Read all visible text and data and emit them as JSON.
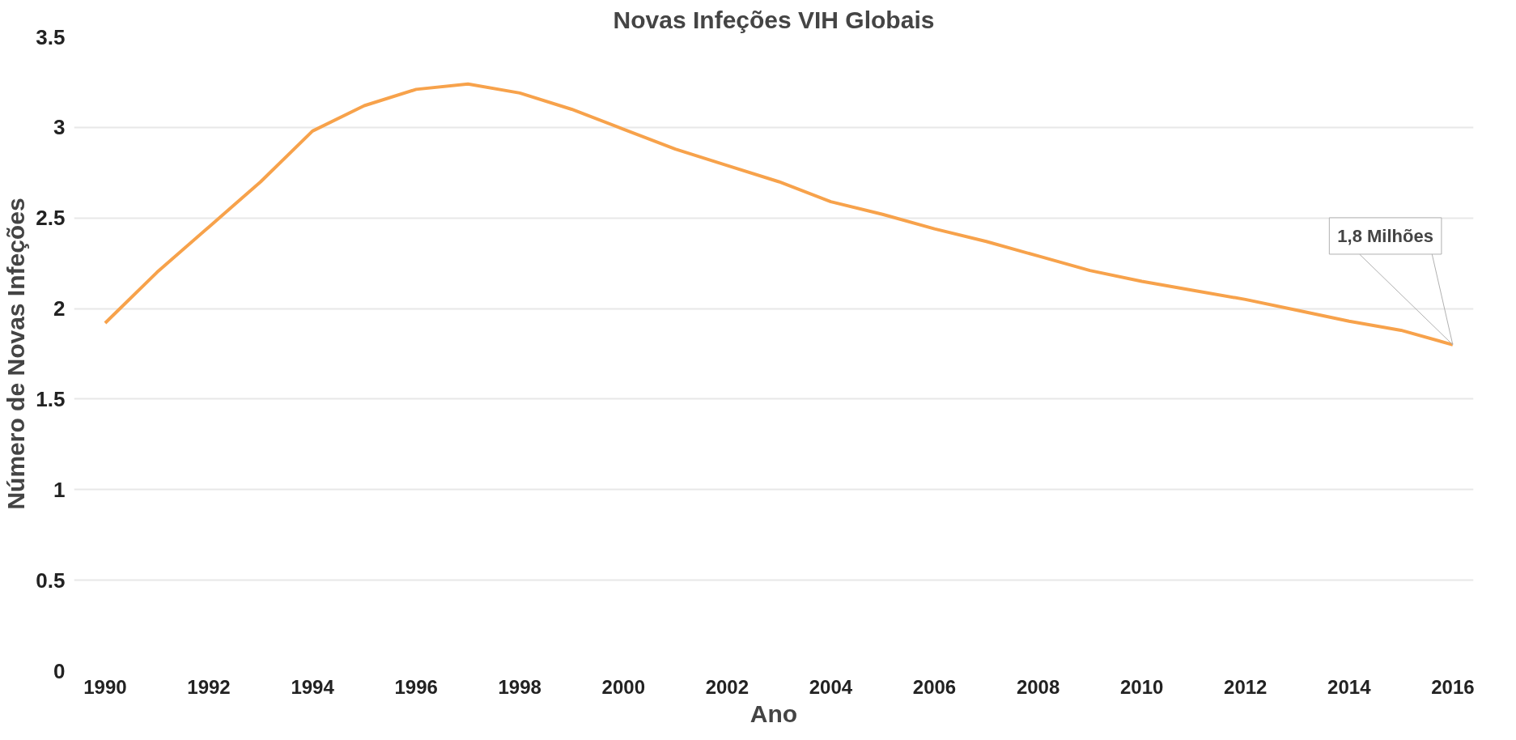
{
  "chart_data": {
    "type": "line",
    "title": "Novas Infeções VIH Globais",
    "xlabel": "Ano",
    "ylabel": "Número de Novas Infeções",
    "x": [
      1990,
      1991,
      1992,
      1993,
      1994,
      1995,
      1996,
      1997,
      1998,
      1999,
      2000,
      2001,
      2002,
      2003,
      2004,
      2005,
      2006,
      2007,
      2008,
      2009,
      2010,
      2011,
      2012,
      2013,
      2014,
      2015,
      2016
    ],
    "series": [
      {
        "color": "#f7a24b",
        "values": [
          1.92,
          2.2,
          2.45,
          2.7,
          2.98,
          3.12,
          3.21,
          3.24,
          3.19,
          3.1,
          2.99,
          2.88,
          2.79,
          2.7,
          2.59,
          2.52,
          2.44,
          2.37,
          2.29,
          2.21,
          2.15,
          2.1,
          2.05,
          1.99,
          1.93,
          1.88,
          1.8
        ]
      }
    ],
    "xlim": [
      1989.4,
      2016.4
    ],
    "xticks": [
      1990,
      1992,
      1994,
      1996,
      1998,
      2000,
      2002,
      2004,
      2006,
      2008,
      2010,
      2012,
      2014,
      2016
    ],
    "ylim": [
      0,
      3.5
    ],
    "yticks": [
      0,
      {
        "value": 0.5,
        "label": "0.5"
      },
      1,
      {
        "value": 1.5,
        "label": "1.5"
      },
      2,
      {
        "value": 2.5,
        "label": "2.5"
      },
      3,
      {
        "value": 3.5,
        "label": "3.5"
      }
    ],
    "grid": "y",
    "marker": "none",
    "line_style": "solid",
    "annotations": [
      {
        "text": "1,8 Milhões",
        "x": 2016,
        "y": 1.8
      }
    ]
  }
}
